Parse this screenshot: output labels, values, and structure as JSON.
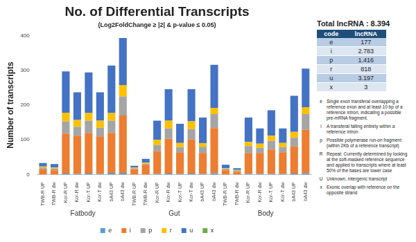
{
  "chart_data": {
    "type": "bar",
    "title": "No. of Differential Transcripts",
    "subtitle": "(Log2FoldChange ≥ |2| & p-value ≤ 0.05)",
    "y_label": "Number of transcripts",
    "stacked": true,
    "grid": false,
    "legend": "bottom",
    "groups": [
      "Fatbody",
      "Gut",
      "Body"
    ],
    "categories": [
      "TWB-R UP",
      "TWB-R dw",
      "Kor-R UP",
      "Kor-R dw",
      "Kor-T UP",
      "Kor-T dw",
      "bA43 UP",
      "bA43 dw",
      "TWB-R UP",
      "TWB-R dw",
      "Kor-R UP",
      "Kor-R dw",
      "Kor-T UP",
      "Kor-T dw",
      "bA43 UP",
      "bA43 dw",
      "TWB-R UP",
      "TWB-R dw",
      "Kor-R UP",
      "Kor-R dw",
      "Kor-T UP",
      "Kor-T dw",
      "bA43 UP",
      "bA43 dw"
    ],
    "ylim": [
      0,
      400
    ],
    "yticks": [
      0,
      100,
      200,
      300,
      400
    ],
    "series": [
      {
        "name": "e",
        "color": "#5b9bd5",
        "values": [
          0,
          0,
          3,
          2,
          3,
          2,
          5,
          5,
          0,
          0,
          2,
          3,
          2,
          3,
          2,
          4,
          0,
          0,
          2,
          2,
          2,
          2,
          3,
          4
        ]
      },
      {
        "name": "i",
        "color": "#ed7d31",
        "values": [
          15,
          12,
          115,
          110,
          117,
          108,
          115,
          165,
          15,
          28,
          65,
          100,
          62,
          98,
          60,
          130,
          12,
          8,
          60,
          60,
          70,
          62,
          78,
          125
        ]
      },
      {
        "name": "p",
        "color": "#a5a5a5",
        "values": [
          5,
          5,
          35,
          25,
          35,
          25,
          35,
          55,
          3,
          3,
          18,
          30,
          15,
          30,
          18,
          40,
          4,
          3,
          20,
          15,
          25,
          15,
          25,
          45
        ]
      },
      {
        "name": "r",
        "color": "#ffc000",
        "values": [
          3,
          3,
          25,
          20,
          22,
          20,
          22,
          33,
          2,
          3,
          15,
          22,
          12,
          22,
          10,
          18,
          2,
          2,
          12,
          12,
          15,
          12,
          17,
          20
        ]
      },
      {
        "name": "u",
        "color": "#4472c4",
        "values": [
          10,
          10,
          119,
          80,
          117,
          82,
          137,
          135,
          5,
          11,
          55,
          91,
          55,
          93,
          74,
          124,
          10,
          5,
          70,
          44,
          73,
          42,
          104,
          111
        ]
      },
      {
        "name": "x",
        "color": "#70ad47",
        "values": [
          0,
          0,
          0,
          0,
          0,
          0,
          0,
          0,
          0,
          0,
          0,
          0,
          0,
          0,
          0,
          0,
          0,
          0,
          0,
          0,
          0,
          0,
          0,
          0
        ]
      }
    ]
  },
  "side_panel": {
    "title": "Total lncRNA : 8.394",
    "table": {
      "header": [
        "code",
        "lncRNA"
      ],
      "rows": [
        [
          "e",
          "177"
        ],
        [
          "i",
          "2.783"
        ],
        [
          "p",
          "1.416"
        ],
        [
          "r",
          "818"
        ],
        [
          "u",
          "3.197"
        ],
        [
          "x",
          "3"
        ]
      ]
    },
    "definitions": [
      [
        "e",
        "Single exon transferal overlapping a reference exon and at least 10 bp of a reference intron, indicating a possible pre-mRNA fragment."
      ],
      [
        "i",
        "A transferal falling entirely within a reference intron"
      ],
      [
        "p",
        "Possible polymerase run-on fragment (within 2Kb of a reference transcript)"
      ],
      [
        "R",
        "Repeat. Currently determined by looking at the soft-masked reference sequence and applied to transcripts where at least 50% of the bases are lower case"
      ],
      [
        "U",
        "Unknown, intergenic transcript"
      ],
      [
        "x",
        "Exonic overlap with reference on the opposite strand"
      ]
    ]
  }
}
